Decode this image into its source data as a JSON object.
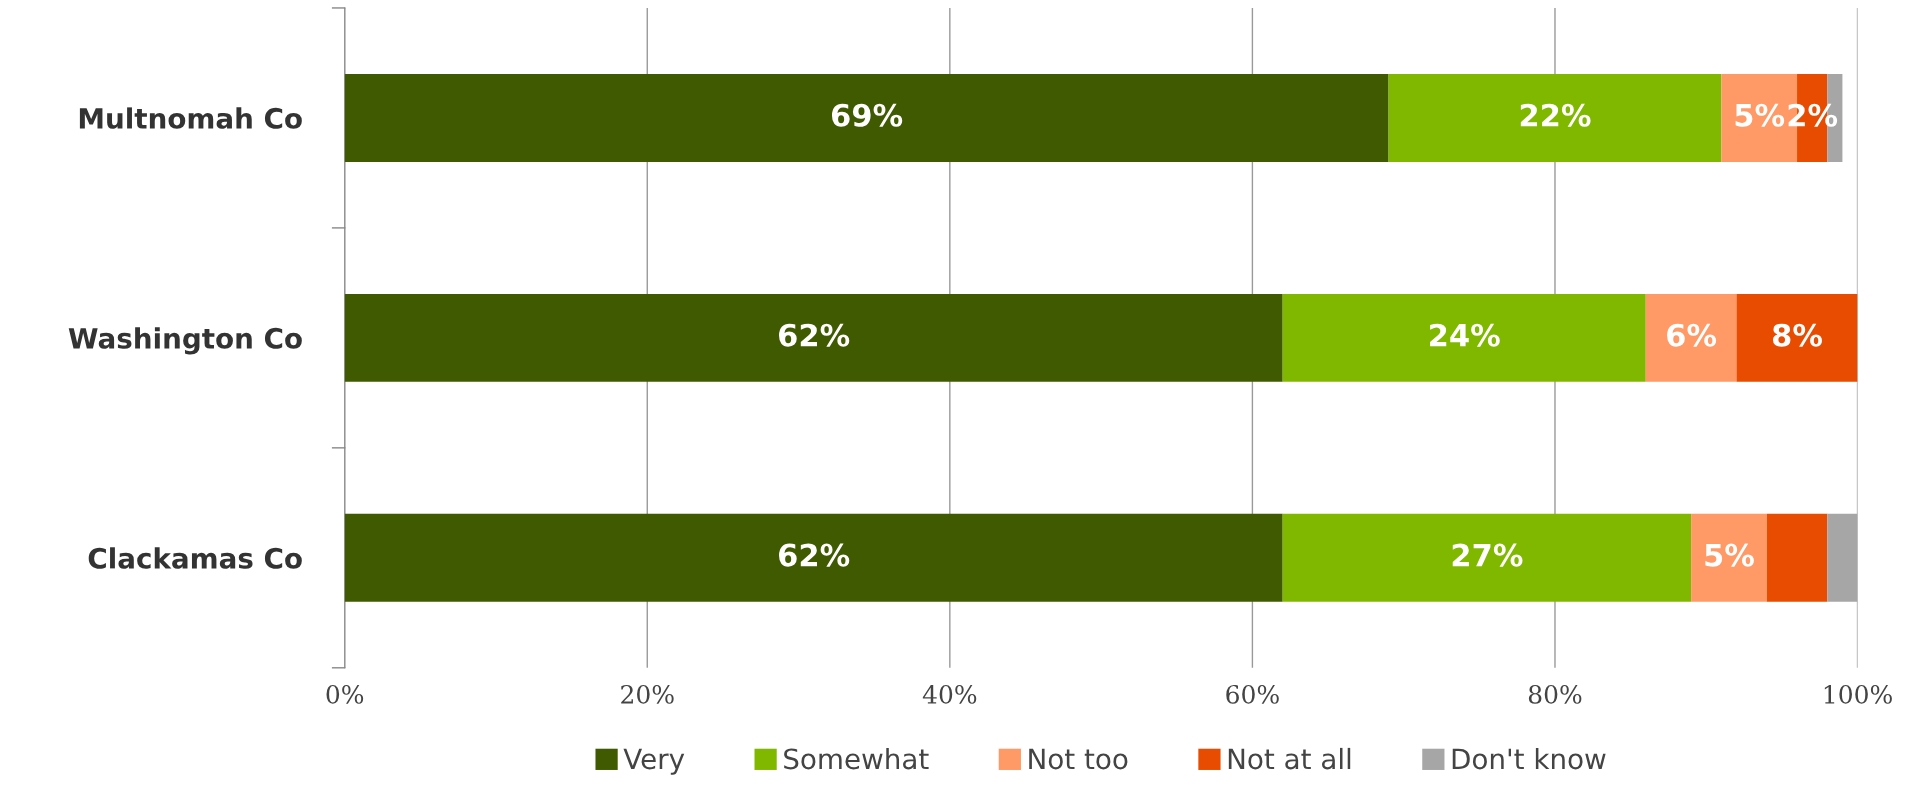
{
  "chart_data": {
    "type": "bar",
    "orientation": "horizontal",
    "stacked": true,
    "categories": [
      "Multnomah Co",
      "Washington Co",
      "Clackamas Co"
    ],
    "series": [
      {
        "name": "Very",
        "color": "#3f5a00",
        "values": [
          69,
          62,
          62
        ],
        "value_labels": [
          "69%",
          "62%",
          "62%"
        ]
      },
      {
        "name": "Somewhat",
        "color": "#80b800",
        "values": [
          22,
          24,
          27
        ],
        "value_labels": [
          "22%",
          "24%",
          "27%"
        ]
      },
      {
        "name": "Not too",
        "color": "#ff9966",
        "values": [
          5,
          6,
          5
        ],
        "value_labels": [
          "5%",
          "6%",
          "5%"
        ]
      },
      {
        "name": "Not at all",
        "color": "#e84c00",
        "values": [
          2,
          8,
          4
        ],
        "value_labels": [
          "2%",
          "8%",
          null
        ]
      },
      {
        "name": "Don't know",
        "color": "#a6a6a6",
        "values": [
          1,
          0,
          2
        ],
        "value_labels": [
          null,
          null,
          null
        ]
      }
    ],
    "xlim": [
      0,
      100
    ],
    "xticks": [
      {
        "value": 0,
        "label": "0%"
      },
      {
        "value": 20,
        "label": "20%"
      },
      {
        "value": 40,
        "label": "40%"
      },
      {
        "value": 60,
        "label": "60%"
      },
      {
        "value": 80,
        "label": "80%"
      },
      {
        "value": 100,
        "label": "100%"
      }
    ],
    "grid": "x",
    "legend": "bottom"
  }
}
